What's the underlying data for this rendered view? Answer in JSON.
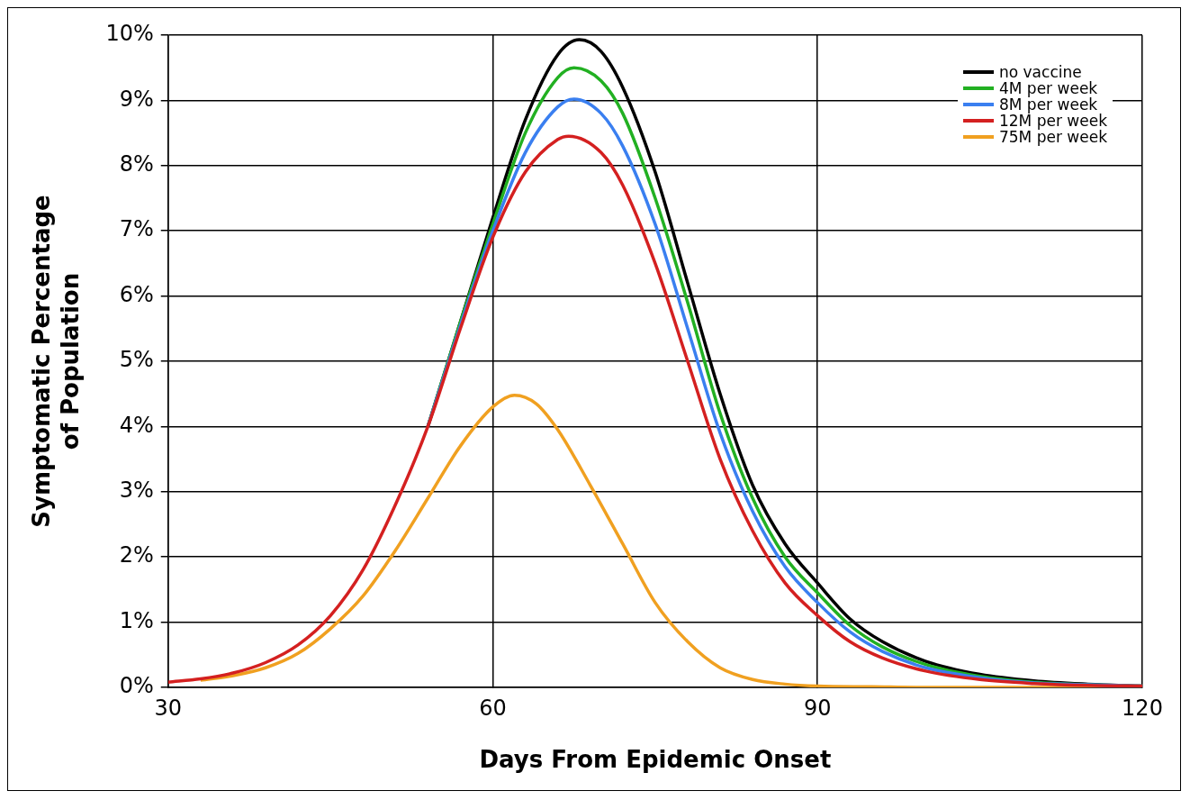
{
  "chart_data": {
    "type": "line",
    "xlabel": "Days From Epidemic Onset",
    "ylabel": "Symptomatic Percentage\nof Population",
    "xlim": [
      30,
      120
    ],
    "xticks": [
      30,
      60,
      90,
      120
    ],
    "ylim": [
      0,
      10
    ],
    "yticks": [
      {
        "value": 0,
        "label": "0%"
      },
      {
        "value": 1,
        "label": "1%"
      },
      {
        "value": 2,
        "label": "2%"
      },
      {
        "value": 3,
        "label": "3%"
      },
      {
        "value": 4,
        "label": "4%"
      },
      {
        "value": 5,
        "label": "5%"
      },
      {
        "value": 6,
        "label": "6%"
      },
      {
        "value": 7,
        "label": "7%"
      },
      {
        "value": 8,
        "label": "8%"
      },
      {
        "value": 9,
        "label": "9%"
      },
      {
        "value": 10,
        "label": "10%"
      }
    ],
    "grid": true,
    "legend": "top right",
    "marker": "none",
    "line_style": "solid",
    "series": [
      {
        "name": "no vaccine",
        "color": "#000000",
        "x": [
          54,
          57,
          60,
          63,
          66,
          68,
          70,
          72,
          75,
          78,
          81,
          84,
          87,
          90,
          93,
          96,
          100,
          105,
          110,
          115,
          120
        ],
        "values": [
          4.0,
          5.6,
          7.2,
          8.7,
          9.7,
          9.93,
          9.75,
          9.2,
          7.9,
          6.2,
          4.5,
          3.1,
          2.2,
          1.6,
          1.05,
          0.7,
          0.4,
          0.2,
          0.1,
          0.05,
          0.02
        ]
      },
      {
        "name": "4M per week",
        "color": "#22b022",
        "x": [
          54,
          57,
          60,
          63,
          66,
          67.5,
          70,
          72,
          75,
          78,
          81,
          84,
          87,
          90,
          93,
          96,
          100,
          105,
          110,
          115,
          120
        ],
        "values": [
          4.0,
          5.6,
          7.1,
          8.5,
          9.35,
          9.5,
          9.3,
          8.8,
          7.5,
          5.9,
          4.2,
          2.9,
          2.0,
          1.45,
          0.95,
          0.62,
          0.35,
          0.17,
          0.08,
          0.04,
          0.02
        ]
      },
      {
        "name": "8M per week",
        "color": "#3a7ff0",
        "x": [
          54,
          57,
          60,
          63,
          66,
          67.5,
          70,
          72,
          75,
          78,
          81,
          84,
          87,
          90,
          93,
          96,
          100,
          105,
          110,
          115,
          120
        ],
        "values": [
          4.0,
          5.55,
          7.0,
          8.2,
          8.9,
          9.02,
          8.8,
          8.3,
          7.1,
          5.5,
          3.9,
          2.7,
          1.85,
          1.3,
          0.85,
          0.55,
          0.3,
          0.15,
          0.07,
          0.04,
          0.02
        ]
      },
      {
        "name": "12M per week",
        "color": "#d42020",
        "x": [
          30,
          33,
          36,
          39,
          42,
          45,
          48,
          51,
          54,
          57,
          60,
          63,
          66,
          67,
          70,
          72,
          75,
          78,
          81,
          84,
          87,
          90,
          93,
          96,
          100,
          105,
          110,
          115,
          120
        ],
        "values": [
          0.08,
          0.13,
          0.22,
          0.38,
          0.65,
          1.1,
          1.8,
          2.8,
          4.0,
          5.5,
          6.9,
          7.9,
          8.4,
          8.45,
          8.2,
          7.7,
          6.5,
          5.0,
          3.5,
          2.4,
          1.6,
          1.1,
          0.7,
          0.45,
          0.25,
          0.12,
          0.06,
          0.03,
          0.02
        ]
      },
      {
        "name": "75M per week",
        "color": "#f0a020",
        "x": [
          33,
          36,
          39,
          42,
          45,
          48,
          51,
          54,
          57,
          60,
          62,
          64,
          66,
          69,
          72,
          75,
          78,
          81,
          84,
          87,
          90,
          95,
          100,
          120
        ],
        "values": [
          0.11,
          0.18,
          0.3,
          0.52,
          0.9,
          1.4,
          2.1,
          2.9,
          3.7,
          4.3,
          4.48,
          4.35,
          3.95,
          3.1,
          2.2,
          1.3,
          0.7,
          0.3,
          0.12,
          0.05,
          0.02,
          0.01,
          0,
          0
        ]
      }
    ]
  }
}
